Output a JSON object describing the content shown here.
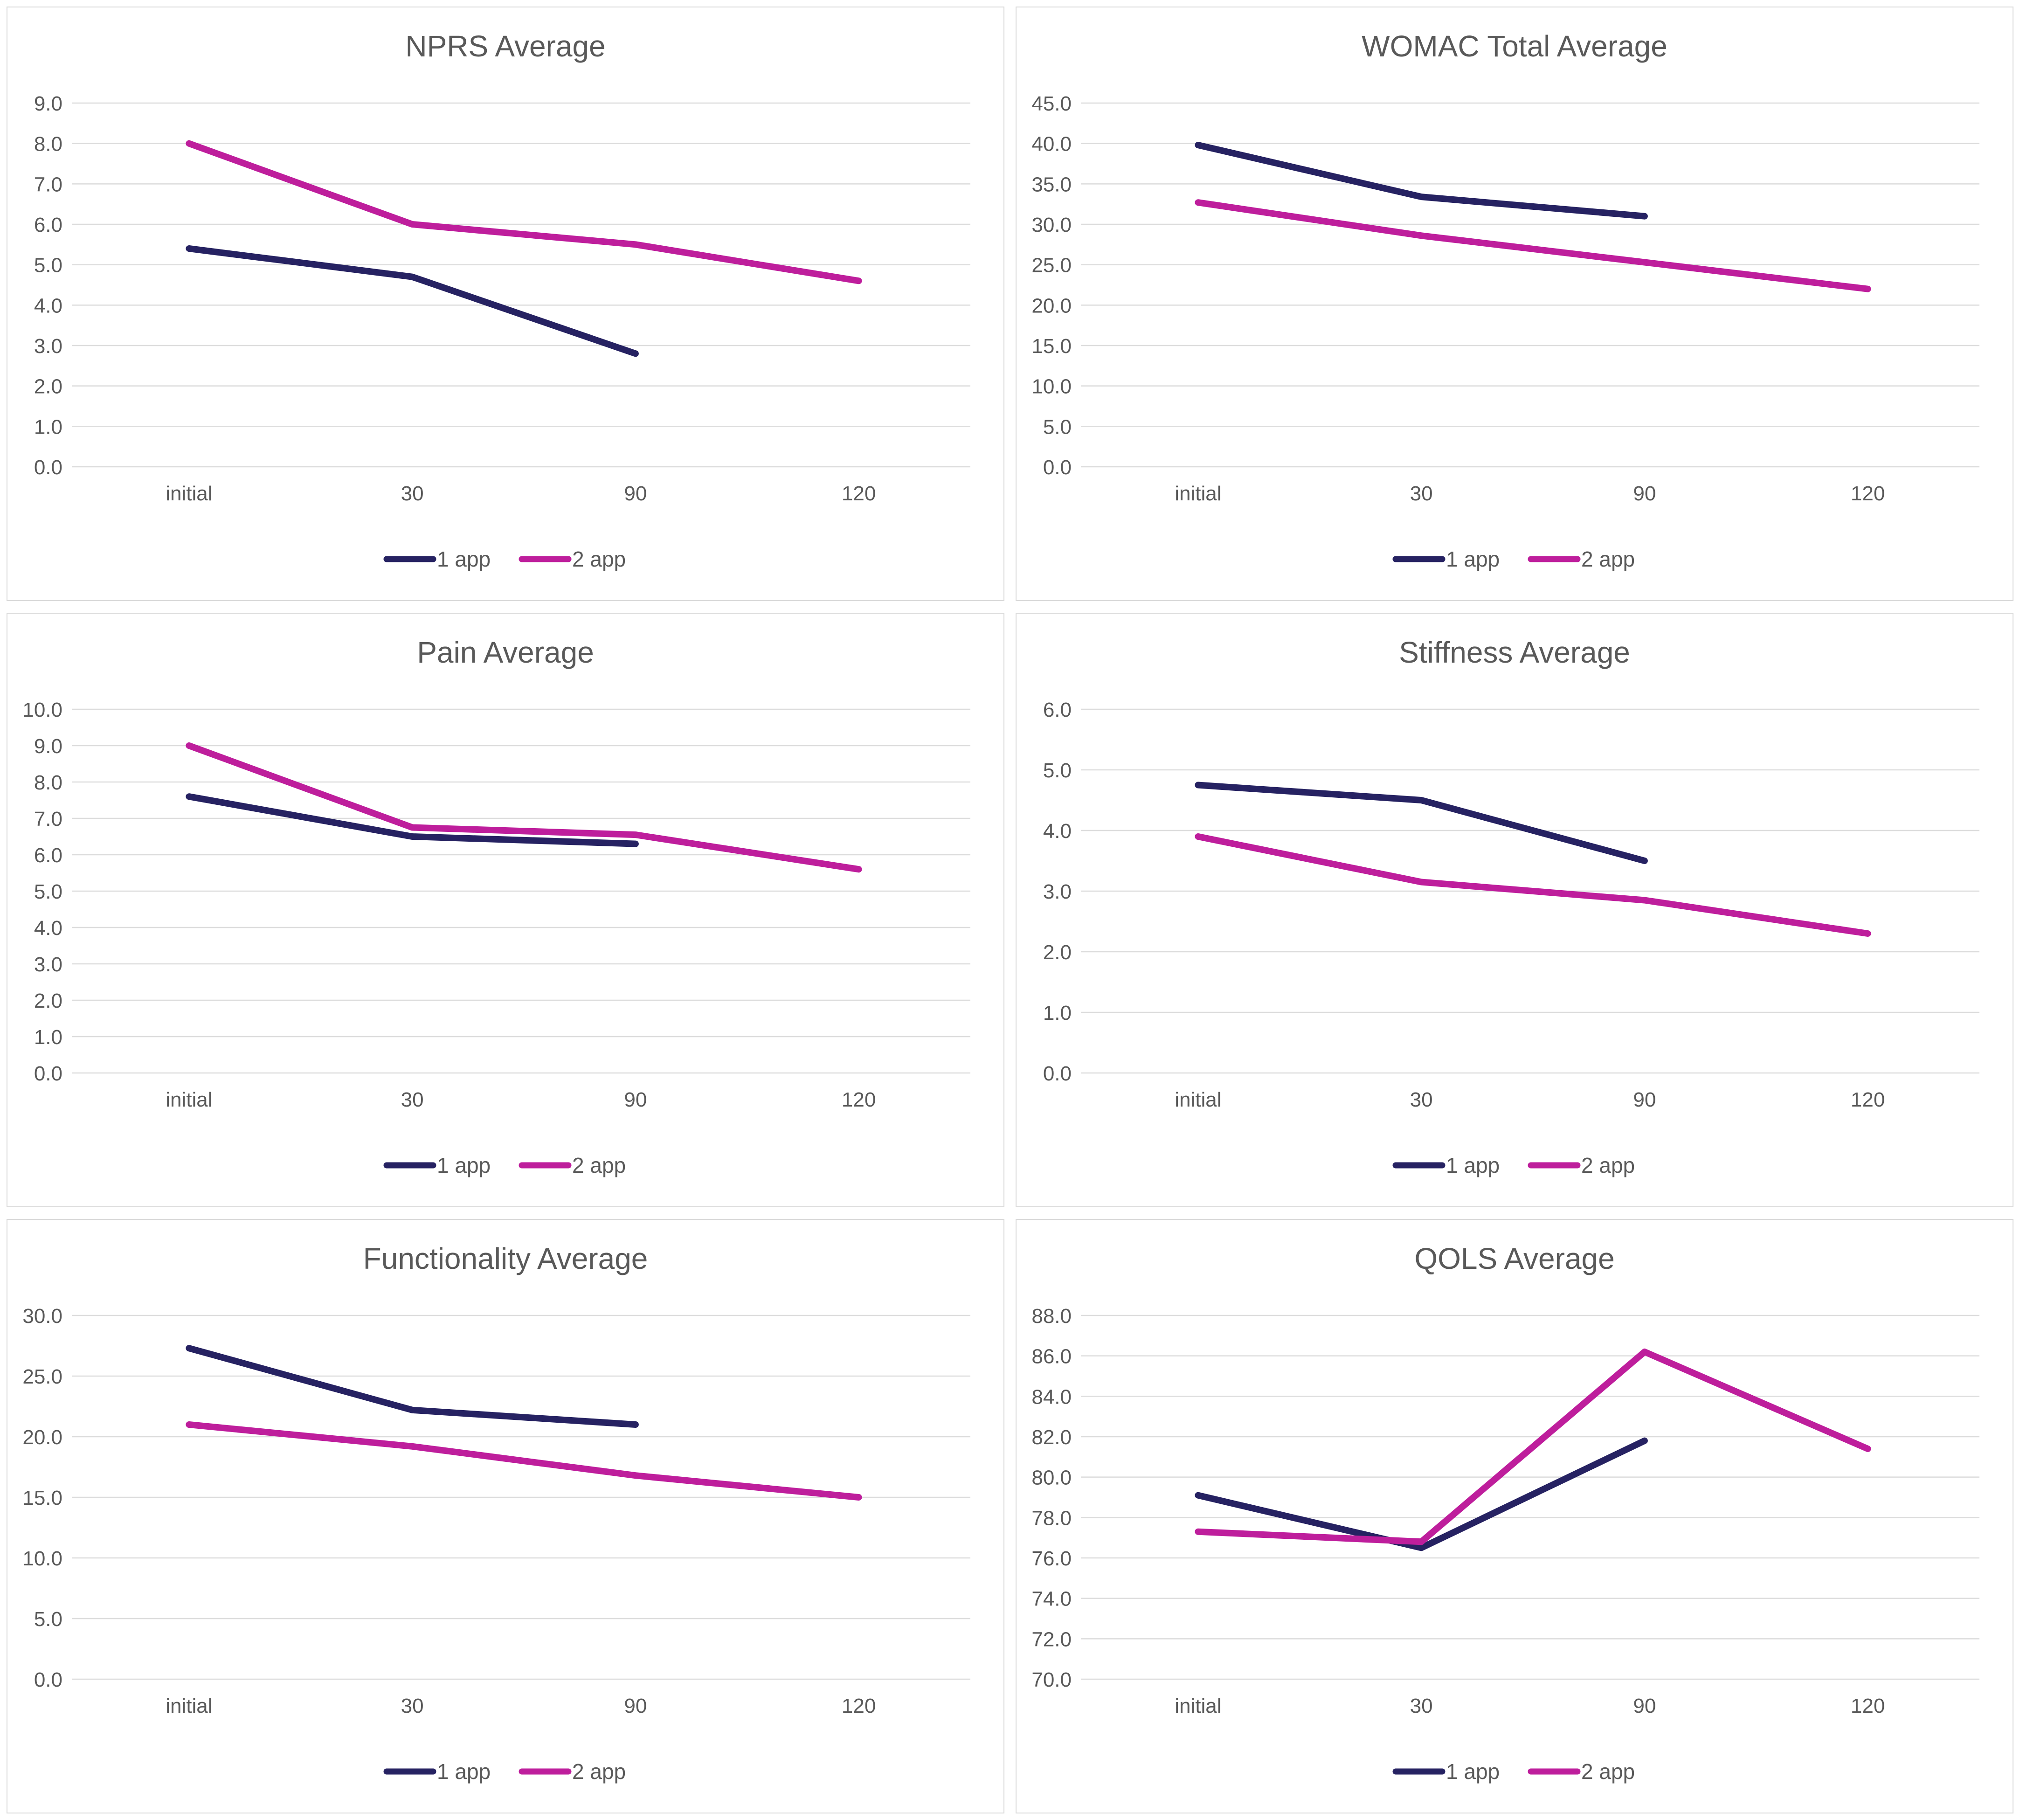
{
  "style": {
    "series_colors": [
      "#262262",
      "#be1e9c"
    ],
    "grid_color": "#dcdcdc",
    "text_color": "#595959",
    "border_color": "#d9d9d9",
    "background": "#ffffff"
  },
  "legend": {
    "items": [
      {
        "label": "1 app",
        "color": "#262262"
      },
      {
        "label": "2 app",
        "color": "#be1e9c"
      }
    ]
  },
  "chart_data": [
    {
      "type": "line",
      "title": "NPRS Average",
      "categories": [
        "initial",
        "30",
        "90",
        "120"
      ],
      "ylim": [
        0,
        9
      ],
      "ytick_step": 1,
      "ytick_format_decimals": 1,
      "grid": true,
      "legend_position": "bottom",
      "series": [
        {
          "name": "1 app",
          "values": [
            5.4,
            4.7,
            2.8,
            null
          ]
        },
        {
          "name": "2 app",
          "values": [
            8.0,
            6.0,
            5.5,
            4.6
          ]
        }
      ]
    },
    {
      "type": "line",
      "title": "WOMAC Total Average",
      "categories": [
        "initial",
        "30",
        "90",
        "120"
      ],
      "ylim": [
        0,
        45
      ],
      "ytick_step": 5,
      "ytick_format_decimals": 1,
      "grid": true,
      "legend_position": "bottom",
      "series": [
        {
          "name": "1 app",
          "values": [
            39.8,
            33.4,
            31.0,
            null
          ]
        },
        {
          "name": "2 app",
          "values": [
            32.7,
            28.6,
            25.3,
            22.0
          ]
        }
      ]
    },
    {
      "type": "line",
      "title": "Pain Average",
      "categories": [
        "initial",
        "30",
        "90",
        "120"
      ],
      "ylim": [
        0,
        10
      ],
      "ytick_step": 1,
      "ytick_format_decimals": 1,
      "grid": true,
      "legend_position": "bottom",
      "series": [
        {
          "name": "1 app",
          "values": [
            7.6,
            6.5,
            6.3,
            null
          ]
        },
        {
          "name": "2 app",
          "values": [
            9.0,
            6.75,
            6.55,
            5.6
          ]
        }
      ]
    },
    {
      "type": "line",
      "title": "Stiffness Average",
      "categories": [
        "initial",
        "30",
        "90",
        "120"
      ],
      "ylim": [
        0,
        6
      ],
      "ytick_step": 1,
      "ytick_format_decimals": 1,
      "grid": true,
      "legend_position": "bottom",
      "series": [
        {
          "name": "1 app",
          "values": [
            4.75,
            4.5,
            3.5,
            null
          ]
        },
        {
          "name": "2 app",
          "values": [
            3.9,
            3.15,
            2.85,
            2.3
          ]
        }
      ]
    },
    {
      "type": "line",
      "title": "Functionality Average",
      "categories": [
        "initial",
        "30",
        "90",
        "120"
      ],
      "ylim": [
        0,
        30
      ],
      "ytick_step": 5,
      "ytick_format_decimals": 1,
      "grid": true,
      "legend_position": "bottom",
      "series": [
        {
          "name": "1 app",
          "values": [
            27.3,
            22.2,
            21.0,
            null
          ]
        },
        {
          "name": "2 app",
          "values": [
            21.0,
            19.2,
            16.8,
            15.0
          ]
        }
      ]
    },
    {
      "type": "line",
      "title": "QOLS Average",
      "categories": [
        "initial",
        "30",
        "90",
        "120"
      ],
      "ylim": [
        70,
        88
      ],
      "ytick_step": 2,
      "ytick_format_decimals": 1,
      "grid": true,
      "legend_position": "bottom",
      "series": [
        {
          "name": "1 app",
          "values": [
            79.1,
            76.5,
            81.8,
            null
          ]
        },
        {
          "name": "2 app",
          "values": [
            77.3,
            76.8,
            86.2,
            81.4
          ]
        }
      ]
    }
  ]
}
